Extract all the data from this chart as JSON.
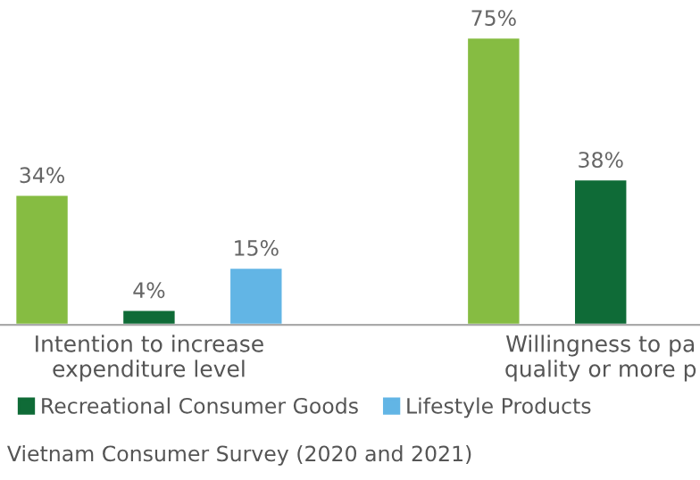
{
  "chart_data": {
    "type": "bar",
    "categories": [
      "Intention to increase\nexpenditure level",
      "Willingness to pa\nquality or more p"
    ],
    "series": [
      {
        "color": "#86bc42",
        "values": [
          34,
          75
        ],
        "value_labels": [
          "34%",
          "75%"
        ]
      },
      {
        "name": "Recreational Consumer Goods",
        "color": "#0f6b37",
        "values": [
          4,
          38
        ],
        "value_labels": [
          "4%",
          "38%"
        ]
      },
      {
        "name": "Lifestyle Products",
        "color": "#62b5e5",
        "values": [
          15,
          null
        ],
        "value_labels": [
          "15%",
          null
        ]
      }
    ],
    "legend": "bottom left",
    "grid": false,
    "annotations": [
      "Vietnam Consumer Survey (2020 and 2021)"
    ]
  }
}
